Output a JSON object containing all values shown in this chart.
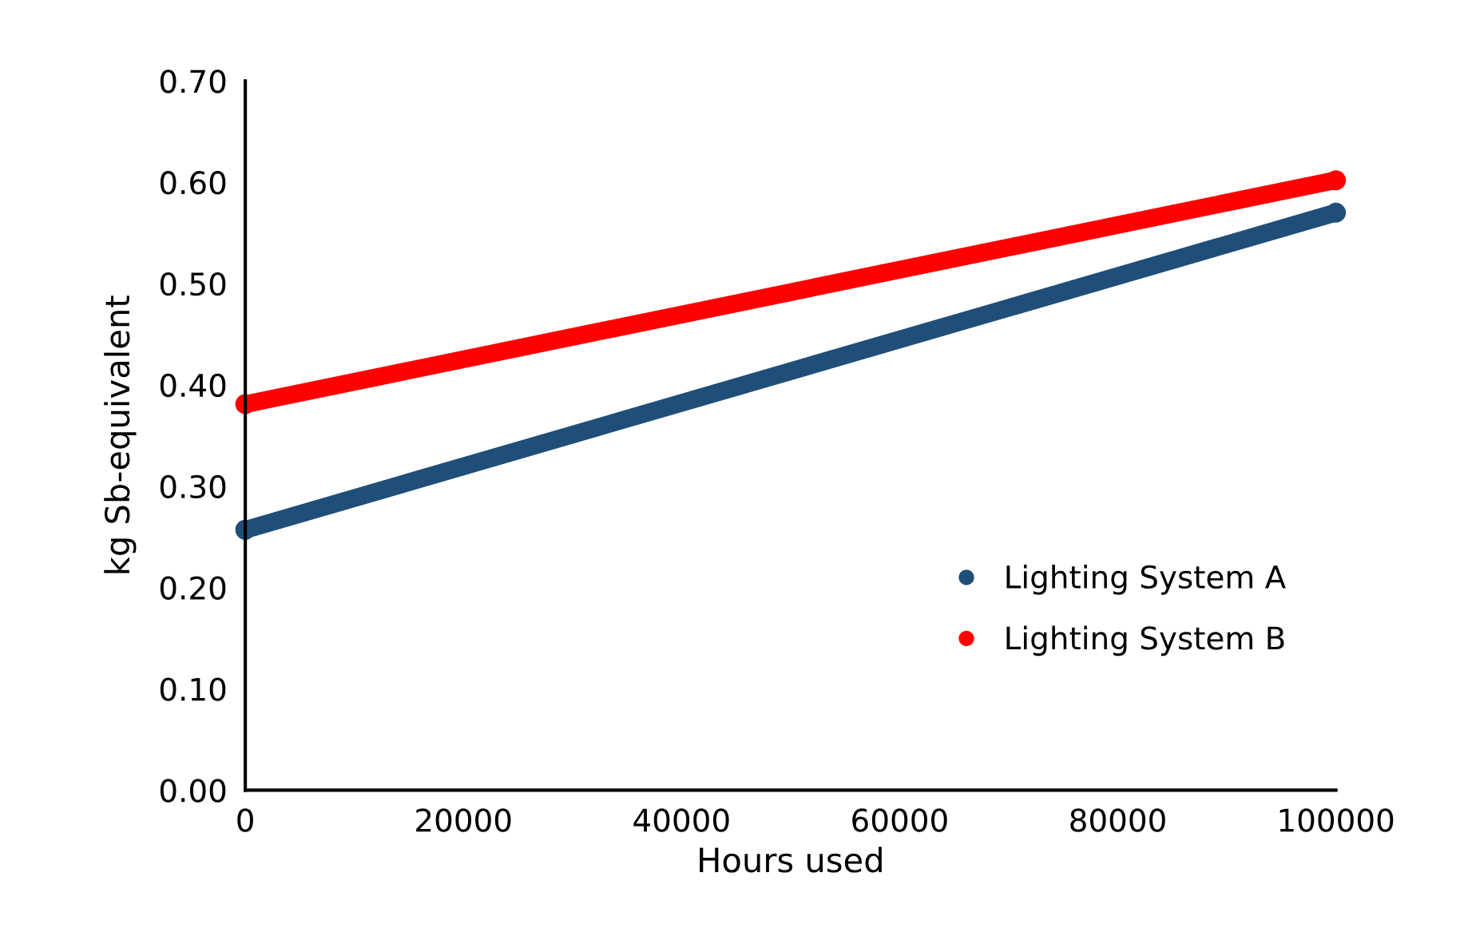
{
  "chart_data": {
    "type": "line",
    "xlabel": "Hours used",
    "ylabel": "kg Sb-equivalent",
    "x": [
      0,
      100000
    ],
    "series": [
      {
        "name": "Lighting System A",
        "color": "#1f4e79",
        "values": [
          0.257,
          0.57
        ]
      },
      {
        "name": "Lighting System B",
        "color": "#ff0000",
        "values": [
          0.381,
          0.602
        ]
      }
    ],
    "xlim": [
      0,
      100000
    ],
    "xticks": [
      0,
      20000,
      40000,
      60000,
      80000,
      100000
    ],
    "ylim": [
      0,
      0.7
    ],
    "yticks": [
      {
        "value": 0,
        "label": "0.00"
      },
      {
        "value": 0.1,
        "label": "0.10"
      },
      {
        "value": 0.2,
        "label": "0.20"
      },
      {
        "value": 0.3,
        "label": "0.30"
      },
      {
        "value": 0.4,
        "label": "0.40"
      },
      {
        "value": 0.5,
        "label": "0.50"
      },
      {
        "value": 0.6,
        "label": "0.60"
      },
      {
        "value": 0.7,
        "label": "0.70"
      }
    ],
    "grid": false,
    "legend": "bottom right",
    "marker": "circle"
  }
}
